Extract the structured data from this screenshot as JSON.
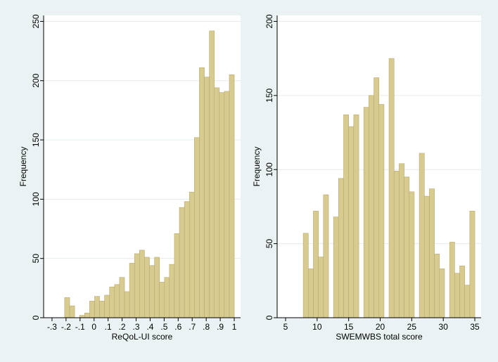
{
  "chart_data": [
    {
      "type": "histogram",
      "xlabel": "ReQoL-UI score",
      "ylabel": "Frequency",
      "color": "#d8cb8f",
      "edge_color": "#b8a972",
      "bins": [
        -0.21,
        -0.1744,
        -0.1388,
        -0.1032,
        -0.0676,
        -0.032,
        0.0036,
        0.0392,
        0.0748,
        0.1104,
        0.146,
        0.1816,
        0.2172,
        0.2528,
        0.2884,
        0.324,
        0.3596,
        0.3952,
        0.4308,
        0.4664,
        0.502,
        0.5376,
        0.5732,
        0.6088,
        0.6444,
        0.68,
        0.7156,
        0.7512,
        0.7868,
        0.8224,
        0.858,
        0.8936,
        0.9292,
        0.9648,
        1.0
      ],
      "values": [
        17,
        10,
        0,
        2,
        4,
        14,
        18,
        14,
        19,
        26,
        28,
        34,
        22,
        46,
        54,
        57,
        51,
        44,
        51,
        30,
        34,
        45,
        71,
        93,
        98,
        106,
        152,
        211,
        203,
        242,
        194,
        190,
        191,
        205
      ],
      "xlim": [
        -0.36,
        1.045
      ],
      "ylim": [
        0,
        255
      ],
      "xticks": [
        {
          "value": -0.3,
          "label": "-.3"
        },
        {
          "value": -0.2,
          "label": "-.2"
        },
        {
          "value": -0.1,
          "label": "-.1"
        },
        0,
        {
          "value": 0.1,
          "label": ".1"
        },
        {
          "value": 0.2,
          "label": ".2"
        },
        {
          "value": 0.3,
          "label": ".3"
        },
        {
          "value": 0.4,
          "label": ".4"
        },
        {
          "value": 0.5,
          "label": ".5"
        },
        {
          "value": 0.6,
          "label": ".6"
        },
        {
          "value": 0.7,
          "label": ".7"
        },
        {
          "value": 0.8,
          "label": ".8"
        },
        {
          "value": 0.9,
          "label": ".9"
        },
        1
      ],
      "yticks": [
        0,
        50,
        100,
        150,
        200,
        250
      ],
      "grid": true
    },
    {
      "type": "histogram",
      "xlabel": "SWEMWBS total  score",
      "ylabel": "Frequency",
      "color": "#d8cb8f",
      "edge_color": "#b8a972",
      "bins": [
        7.8,
        8.6,
        9.4,
        10.2,
        11.0,
        11.8,
        12.6,
        13.4,
        14.2,
        15.0,
        15.8,
        16.6,
        17.4,
        18.2,
        19.0,
        19.8,
        20.6,
        21.4,
        22.2,
        23.0,
        23.8,
        24.6,
        25.4,
        26.2,
        27.0,
        27.8,
        28.6,
        29.4,
        30.2,
        31.0,
        31.8,
        32.6,
        33.4,
        34.2,
        35.0
      ],
      "values": [
        57,
        33,
        72,
        41,
        83,
        0,
        68,
        94,
        137,
        129,
        137,
        0,
        142,
        150,
        162,
        144,
        0,
        175,
        99,
        104,
        95,
        85,
        0,
        111,
        82,
        87,
        43,
        33,
        0,
        51,
        30,
        35,
        22,
        72
      ],
      "xlim": [
        3.66,
        36.0
      ],
      "ylim": [
        0,
        204
      ],
      "xticks": [
        5,
        10,
        15,
        20,
        25,
        30,
        35
      ],
      "yticks": [
        0,
        50,
        100,
        150,
        200
      ],
      "grid": true
    }
  ]
}
